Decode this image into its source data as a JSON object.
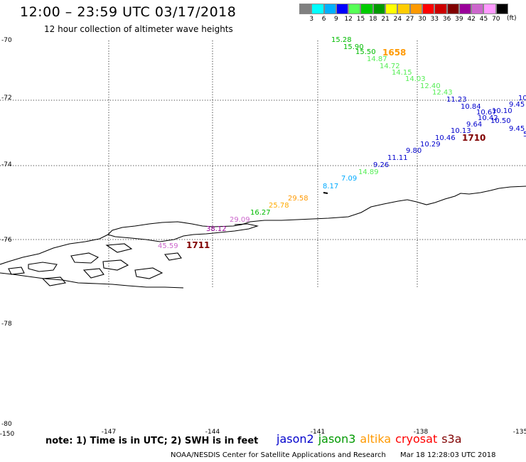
{
  "header": {
    "title": "12:00 – 23:59 UTC 03/17/2018",
    "subtitle": "12 hour collection of altimeter wave heights"
  },
  "legend": {
    "unit": "(ft)",
    "colors": [
      "#808080",
      "#00ffff",
      "#00b0ff",
      "#0000ff",
      "#55ff55",
      "#00cc00",
      "#009900",
      "#ffff00",
      "#ffcc00",
      "#ff9900",
      "#ff0000",
      "#cc0000",
      "#800000",
      "#990099",
      "#cc66cc",
      "#ff99ff",
      "#000000"
    ],
    "ticks": [
      "3",
      "6",
      "9",
      "12",
      "15",
      "18",
      "21",
      "24",
      "27",
      "30",
      "33",
      "36",
      "39",
      "42",
      "45",
      "70"
    ]
  },
  "lat_labels": [
    "-70",
    "-72",
    "-74",
    "-76",
    "-78",
    "-80"
  ],
  "lon_labels": [
    "-150",
    "-147",
    "-144",
    "-141",
    "-138",
    "-135"
  ],
  "footer": {
    "note": "note:  1) Time is in UTC;  2) SWH is in feet",
    "satellites": [
      {
        "name": "jason2",
        "color": "#0000cc"
      },
      {
        "name": "jason3",
        "color": "#009900"
      },
      {
        "name": "altika",
        "color": "#ff9900"
      },
      {
        "name": "cryosat",
        "color": "#ff0000"
      },
      {
        "name": "s3a",
        "color": "#800000"
      }
    ],
    "credit": "NOAA/NESDIS Center for Satellite Applications and Research",
    "timestamp": "Mar 18 12:28:03 UTC 2018"
  },
  "map_data": {
    "wave_labels": [
      {
        "text": "15.28",
        "color": "#00bb00"
      },
      {
        "text": "15.90",
        "color": "#00bb00"
      },
      {
        "text": "15.50",
        "color": "#00bb00"
      },
      {
        "text": "14.87",
        "color": "#55ee55"
      },
      {
        "text": "14.72",
        "color": "#55ee55"
      },
      {
        "text": "14.15",
        "color": "#55ee55"
      },
      {
        "text": "14.03",
        "color": "#55ee55"
      },
      {
        "text": "12.40",
        "color": "#55ee55"
      },
      {
        "text": "12.43",
        "color": "#55ee55"
      },
      {
        "text": "11.23",
        "color": "#0000cc"
      },
      {
        "text": "10.84",
        "color": "#0000cc"
      },
      {
        "text": "10.67",
        "color": "#0000cc"
      },
      {
        "text": "10.10",
        "color": "#0000cc"
      },
      {
        "text": "10.42",
        "color": "#0000cc"
      },
      {
        "text": "10.50",
        "color": "#0000cc"
      },
      {
        "text": "9.45",
        "color": "#0000cc"
      },
      {
        "text": "9.64",
        "color": "#0000cc"
      },
      {
        "text": "9.45",
        "color": "#0000cc"
      },
      {
        "text": "10.13",
        "color": "#0000cc"
      },
      {
        "text": "10.46",
        "color": "#0000cc"
      },
      {
        "text": "10.29",
        "color": "#0000cc"
      },
      {
        "text": "9.80",
        "color": "#0000cc"
      },
      {
        "text": "11.11",
        "color": "#0000cc"
      },
      {
        "text": "9.26",
        "color": "#0000cc"
      },
      {
        "text": "14.89",
        "color": "#55ee55"
      },
      {
        "text": "7.09",
        "color": "#00aaff"
      },
      {
        "text": "8.17",
        "color": "#00aaff"
      },
      {
        "text": "29.58",
        "color": "#ff9900"
      },
      {
        "text": "25.78",
        "color": "#ffaa00"
      },
      {
        "text": "16.27",
        "color": "#00bb00"
      },
      {
        "text": "29.09",
        "color": "#cc66cc"
      },
      {
        "text": "38.12",
        "color": "#990099"
      },
      {
        "text": "45.59",
        "color": "#cc66cc"
      },
      {
        "text": "10",
        "color": "#0000cc"
      },
      {
        "text": "5",
        "color": "#0000cc"
      }
    ],
    "time_labels": [
      {
        "text": "1658",
        "color": "#ff9900"
      },
      {
        "text": "1710",
        "color": "#800000"
      },
      {
        "text": "1711",
        "color": "#800000"
      }
    ]
  }
}
